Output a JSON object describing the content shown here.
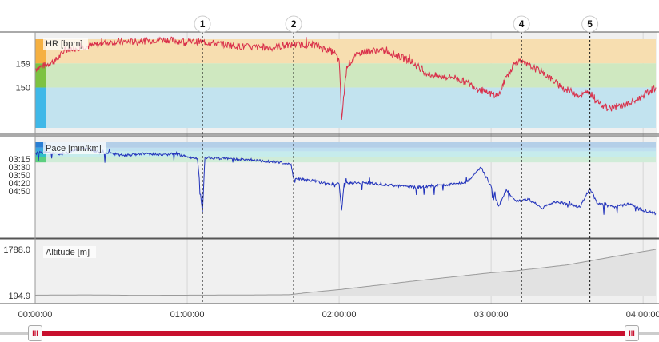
{
  "chart_data": {
    "type": "line",
    "x_axis": {
      "ticks": [
        "00:00:00",
        "01:00:00",
        "02:00:00",
        "03:00:00",
        "04:00:00"
      ],
      "range_minutes": [
        0,
        245
      ]
    },
    "markers": [
      {
        "label": "1",
        "time_min": 66
      },
      {
        "label": "2",
        "time_min": 102
      },
      {
        "label": "4",
        "time_min": 192
      },
      {
        "label": "5",
        "time_min": 219
      }
    ],
    "panels": [
      {
        "name": "hr",
        "title": "HR [bpm]",
        "ticks": [
          "159",
          "150"
        ],
        "tick_values": [
          159,
          150
        ],
        "zones": [
          {
            "from": 159,
            "to": 168,
            "color": "#f7deb0",
            "bar": "#f5b041"
          },
          {
            "from": 150,
            "to": 159,
            "color": "#cfe8c0",
            "bar": "#7dc242"
          },
          {
            "from": 135,
            "to": 150,
            "color": "#c2e3ef",
            "bar": "#3fb8e8"
          }
        ],
        "ylim": [
          135,
          168
        ],
        "line_color": "#d9304a",
        "series": [
          [
            0,
            157
          ],
          [
            3,
            158
          ],
          [
            8,
            160
          ],
          [
            12,
            164
          ],
          [
            18,
            165
          ],
          [
            25,
            166
          ],
          [
            30,
            167
          ],
          [
            40,
            167
          ],
          [
            50,
            168
          ],
          [
            60,
            167
          ],
          [
            66,
            167
          ],
          [
            75,
            166
          ],
          [
            85,
            165
          ],
          [
            95,
            165
          ],
          [
            102,
            166
          ],
          [
            110,
            166
          ],
          [
            118,
            163
          ],
          [
            120,
            160
          ],
          [
            121,
            138
          ],
          [
            123,
            158
          ],
          [
            128,
            163
          ],
          [
            135,
            164
          ],
          [
            140,
            163
          ],
          [
            148,
            160
          ],
          [
            155,
            155
          ],
          [
            160,
            154
          ],
          [
            165,
            154
          ],
          [
            170,
            152
          ],
          [
            178,
            148
          ],
          [
            183,
            147
          ],
          [
            186,
            154
          ],
          [
            190,
            160
          ],
          [
            195,
            158
          ],
          [
            200,
            156
          ],
          [
            208,
            150
          ],
          [
            215,
            147
          ],
          [
            219,
            148
          ],
          [
            222,
            145
          ],
          [
            226,
            142
          ],
          [
            230,
            143
          ],
          [
            235,
            144
          ],
          [
            240,
            147
          ],
          [
            245,
            150
          ]
        ]
      },
      {
        "name": "pace",
        "title": "Pace [min/km]",
        "ticks": [
          "03:15",
          "03:30",
          "03:50",
          "04:20",
          "04:50"
        ],
        "tick_values": [
          3.25,
          3.5,
          3.83,
          4.33,
          4.83
        ],
        "zones": [
          {
            "from": 3.0,
            "to": 3.5,
            "color": "#b4cfe8",
            "bar": "#2a7fd4"
          },
          {
            "from": 3.5,
            "to": 3.83,
            "color": "#bfe0f0",
            "bar": "#3aa6e0"
          },
          {
            "from": 3.83,
            "to": 4.33,
            "color": "#c6ecec",
            "bar": "#32c0c8"
          },
          {
            "from": 4.33,
            "to": 4.83,
            "color": "#d0ecd8",
            "bar": "#5ccf7f"
          }
        ],
        "ylim": [
          3.0,
          11.0
        ],
        "line_color": "#2233bb",
        "series": [
          [
            0,
            4.0
          ],
          [
            5,
            3.9
          ],
          [
            10,
            4.1
          ],
          [
            15,
            3.8
          ],
          [
            20,
            3.5
          ],
          [
            25,
            3.9
          ],
          [
            30,
            4.0
          ],
          [
            35,
            4.2
          ],
          [
            40,
            4.1
          ],
          [
            45,
            4.0
          ],
          [
            50,
            4.2
          ],
          [
            55,
            4.0
          ],
          [
            60,
            4.3
          ],
          [
            64,
            4.5
          ],
          [
            66,
            9.5
          ],
          [
            67,
            4.4
          ],
          [
            75,
            4.5
          ],
          [
            85,
            4.6
          ],
          [
            95,
            4.8
          ],
          [
            101,
            5.0
          ],
          [
            102,
            6.3
          ],
          [
            110,
            6.5
          ],
          [
            115,
            6.8
          ],
          [
            120,
            6.8
          ],
          [
            121,
            9.2
          ],
          [
            122,
            6.7
          ],
          [
            130,
            6.7
          ],
          [
            140,
            6.9
          ],
          [
            150,
            7.1
          ],
          [
            160,
            6.9
          ],
          [
            170,
            6.7
          ],
          [
            176,
            5.3
          ],
          [
            180,
            7.0
          ],
          [
            183,
            8.8
          ],
          [
            186,
            7.3
          ],
          [
            190,
            8.4
          ],
          [
            195,
            8.2
          ],
          [
            200,
            9.0
          ],
          [
            205,
            8.4
          ],
          [
            210,
            8.6
          ],
          [
            215,
            8.9
          ],
          [
            219,
            7.2
          ],
          [
            222,
            8.6
          ],
          [
            228,
            8.9
          ],
          [
            235,
            8.6
          ],
          [
            240,
            9.2
          ],
          [
            245,
            9.5
          ]
        ]
      },
      {
        "name": "altitude",
        "title": "Altitude [m]",
        "ticks": [
          "1788.0",
          "194.9"
        ],
        "tick_values": [
          1788.0,
          194.9
        ],
        "ylim": [
          194.9,
          1788.0
        ],
        "line_color": "#9a9a9a",
        "fill_color": "#e2e2e2",
        "series": [
          [
            0,
            210
          ],
          [
            20,
            220
          ],
          [
            40,
            205
          ],
          [
            60,
            210
          ],
          [
            80,
            215
          ],
          [
            100,
            225
          ],
          [
            110,
            320
          ],
          [
            120,
            400
          ],
          [
            150,
            700
          ],
          [
            180,
            980
          ],
          [
            190,
            1050
          ],
          [
            210,
            1250
          ],
          [
            230,
            1560
          ],
          [
            245,
            1788
          ]
        ]
      }
    ]
  },
  "scrollbar": {
    "left_handle": "III",
    "right_handle": "III"
  }
}
